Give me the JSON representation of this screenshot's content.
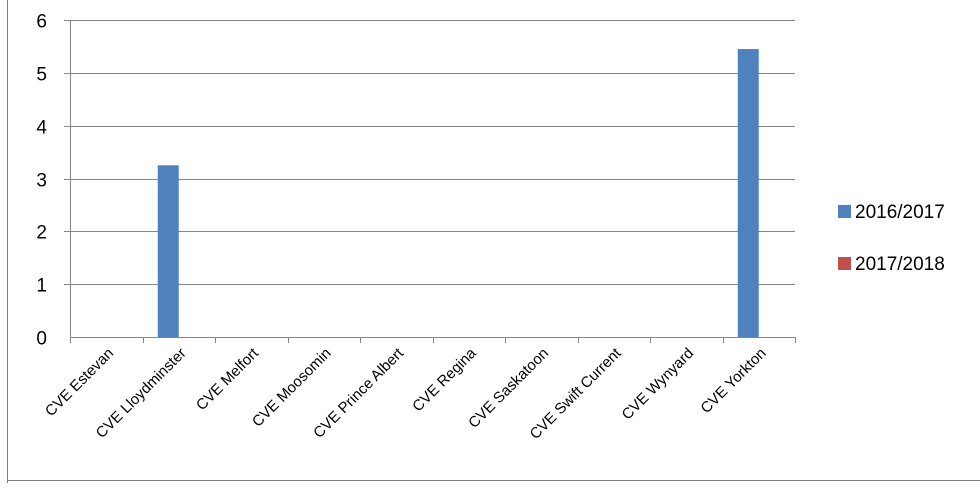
{
  "chart_data": {
    "type": "bar",
    "categories": [
      "CVE Estevan",
      "CVE Lloydminster",
      "CVE Melfort",
      "CVE Moosomin",
      "CVE Prince Albert",
      "CVE Regina",
      "CVE Saskatoon",
      "CVE Swift Current",
      "CVE Wynyard",
      "CVE Yorkton"
    ],
    "series": [
      {
        "name": "2016/2017",
        "color": "#4F81BD",
        "values": [
          0,
          3.25,
          0,
          0,
          0,
          0,
          0,
          0,
          0,
          5.45
        ]
      },
      {
        "name": "2017/2018",
        "color": "#C0504D",
        "values": [
          0,
          0,
          0,
          0,
          0,
          0,
          0,
          0,
          0,
          0
        ]
      }
    ],
    "ylim": [
      0,
      6
    ],
    "yticks": [
      0,
      1,
      2,
      3,
      4,
      5,
      6
    ],
    "grid": true,
    "legend": "right"
  }
}
